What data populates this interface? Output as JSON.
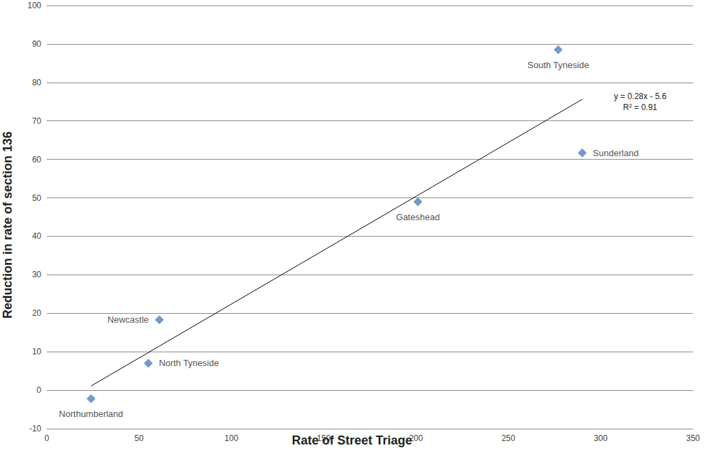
{
  "chart_data": {
    "type": "scatter",
    "x_label": "Rate of Street Triage",
    "y_label": "Reduction in rate of section 136",
    "labels": [
      "Northumberland",
      "North Tyneside",
      "Newcastle",
      "Gateshead",
      "South Tyneside",
      "Sunderland"
    ],
    "x": [
      24,
      55,
      61,
      201,
      277,
      290
    ],
    "values": [
      -2.2,
      7,
      18.3,
      49,
      88.5,
      61.7
    ],
    "color": "#4f81bd",
    "marker": "diamond",
    "xlim": [
      0,
      350
    ],
    "xticks": [
      0,
      50,
      100,
      150,
      200,
      250,
      300,
      350
    ],
    "ylim": [
      -10,
      100
    ],
    "yticks": [
      -10,
      0,
      10,
      20,
      30,
      40,
      50,
      60,
      70,
      80,
      90,
      100
    ],
    "grid": true,
    "trendline": {
      "x": [
        24,
        290
      ],
      "values": [
        1.1,
        75.6
      ],
      "color": "#000000"
    },
    "annotations": [
      "y = 0.28x - 5.6",
      "R² = 0.91"
    ]
  }
}
